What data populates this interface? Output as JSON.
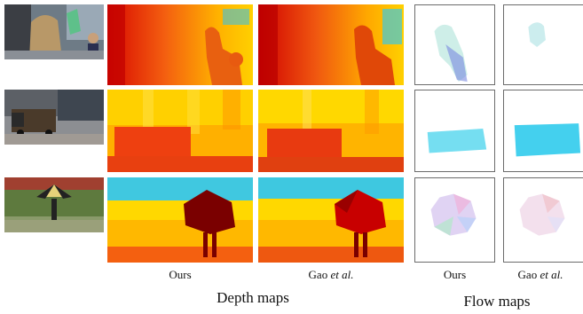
{
  "columns": {
    "ours": "Ours",
    "gao_prefix": "Gao ",
    "gao_italic": "et al."
  },
  "sections": {
    "depth": "Depth maps",
    "flow": "Flow maps"
  },
  "rows": [
    {
      "scene": "people-on-street"
    },
    {
      "scene": "delivery-truck"
    },
    {
      "scene": "person-with-umbrella"
    }
  ],
  "colors": {
    "depth_near": "#7a0000",
    "depth_mid": "#e83a10",
    "depth_far": "#ffd900",
    "sky_cyan": "#3ec8e0",
    "flow_cyan": "#55d8f0"
  }
}
